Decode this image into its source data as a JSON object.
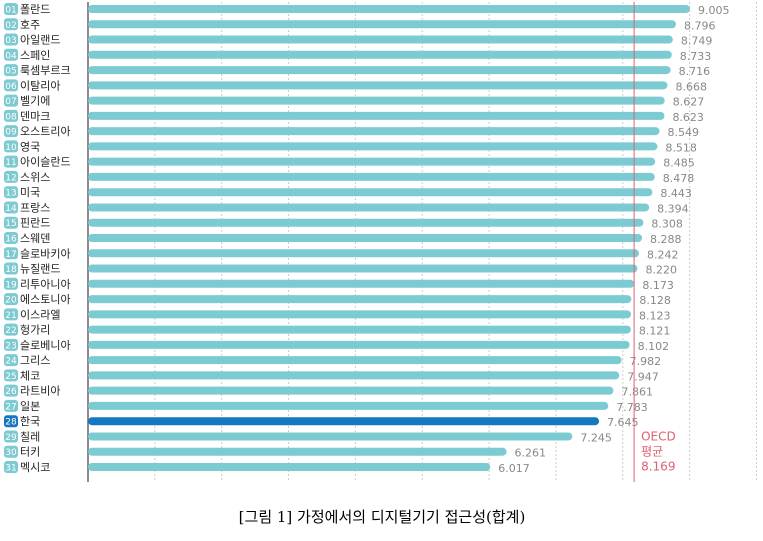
{
  "chart_data": {
    "type": "bar",
    "orientation": "horizontal",
    "caption": "[그림 1] 가정에서의 디지털기기 접근성(합계)",
    "ranks": [
      "01",
      "02",
      "03",
      "04",
      "05",
      "06",
      "07",
      "08",
      "09",
      "10",
      "11",
      "12",
      "13",
      "14",
      "15",
      "16",
      "17",
      "18",
      "19",
      "20",
      "21",
      "22",
      "23",
      "24",
      "25",
      "26",
      "27",
      "28",
      "29",
      "30",
      "31"
    ],
    "categories": [
      "폴란드",
      "호주",
      "아일랜드",
      "스페인",
      "룩셈부르크",
      "이탈리아",
      "벨기에",
      "덴마크",
      "오스트리아",
      "영국",
      "아이슬란드",
      "스위스",
      "미국",
      "프랑스",
      "핀란드",
      "스웨덴",
      "슬로바키아",
      "뉴질랜드",
      "리투아니아",
      "에스토니아",
      "이스라엘",
      "헝가리",
      "슬로베니아",
      "그리스",
      "체코",
      "라트비아",
      "일본",
      "한국",
      "칠레",
      "터키",
      "멕시코"
    ],
    "values": [
      9.005,
      8.796,
      8.749,
      8.733,
      8.716,
      8.668,
      8.627,
      8.623,
      8.549,
      8.518,
      8.485,
      8.478,
      8.443,
      8.394,
      8.308,
      8.288,
      8.242,
      8.22,
      8.173,
      8.128,
      8.123,
      8.121,
      8.102,
      7.982,
      7.947,
      7.861,
      7.783,
      7.645,
      7.245,
      6.261,
      6.017
    ],
    "value_labels": [
      "9.005",
      "8.796",
      "8.749",
      "8.733",
      "8.716",
      "8.668",
      "8.627",
      "8.623",
      "8.549",
      "8.518",
      "8.485",
      "8.478",
      "8.443",
      "8.394",
      "8.308",
      "8.288",
      "8.242",
      "8.220",
      "8.173",
      "8.128",
      "8.123",
      "8.121",
      "8.102",
      "7.982",
      "7.947",
      "7.861",
      "7.783",
      "7.645",
      "7.245",
      "6.261",
      "6.017"
    ],
    "colors": [
      "#7ccbd2",
      "#7ccbd2",
      "#7ccbd2",
      "#7ccbd2",
      "#7ccbd2",
      "#7ccbd2",
      "#7ccbd2",
      "#7ccbd2",
      "#7ccbd2",
      "#7ccbd2",
      "#7ccbd2",
      "#7ccbd2",
      "#7ccbd2",
      "#7ccbd2",
      "#7ccbd2",
      "#7ccbd2",
      "#7ccbd2",
      "#7ccbd2",
      "#7ccbd2",
      "#7ccbd2",
      "#7ccbd2",
      "#7ccbd2",
      "#7ccbd2",
      "#7ccbd2",
      "#7ccbd2",
      "#7ccbd2",
      "#7ccbd2",
      "#1577c0",
      "#7ccbd2",
      "#7ccbd2",
      "#7ccbd2"
    ],
    "xlim": [
      0,
      10
    ],
    "xticks": [
      0,
      1,
      2,
      3,
      4,
      5,
      6,
      7,
      8,
      9,
      10
    ],
    "grid": true,
    "reference": {
      "label": [
        "OECD",
        "평균"
      ],
      "value": 8.169,
      "color": "#e06070"
    }
  }
}
